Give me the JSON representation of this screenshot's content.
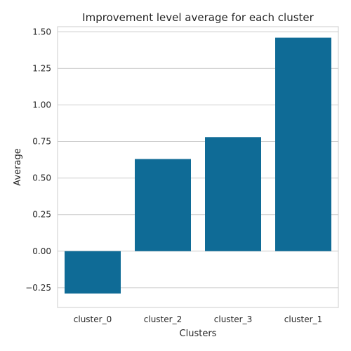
{
  "chart_data": {
    "type": "bar",
    "title": "Improvement level average for each cluster",
    "xlabel": "Clusters",
    "ylabel": "Average",
    "categories": [
      "cluster_0",
      "cluster_2",
      "cluster_3",
      "cluster_1"
    ],
    "values": [
      -0.29,
      0.63,
      0.78,
      1.46
    ],
    "ylim": [
      -0.385,
      1.535
    ],
    "yticks": [
      -0.25,
      0.0,
      0.25,
      0.5,
      0.75,
      1.0,
      1.25,
      1.5
    ],
    "ytick_labels": [
      "−0.25",
      "0.00",
      "0.25",
      "0.50",
      "0.75",
      "1.00",
      "1.25",
      "1.50"
    ],
    "grid": true,
    "bar_color": "#0f6b96"
  }
}
